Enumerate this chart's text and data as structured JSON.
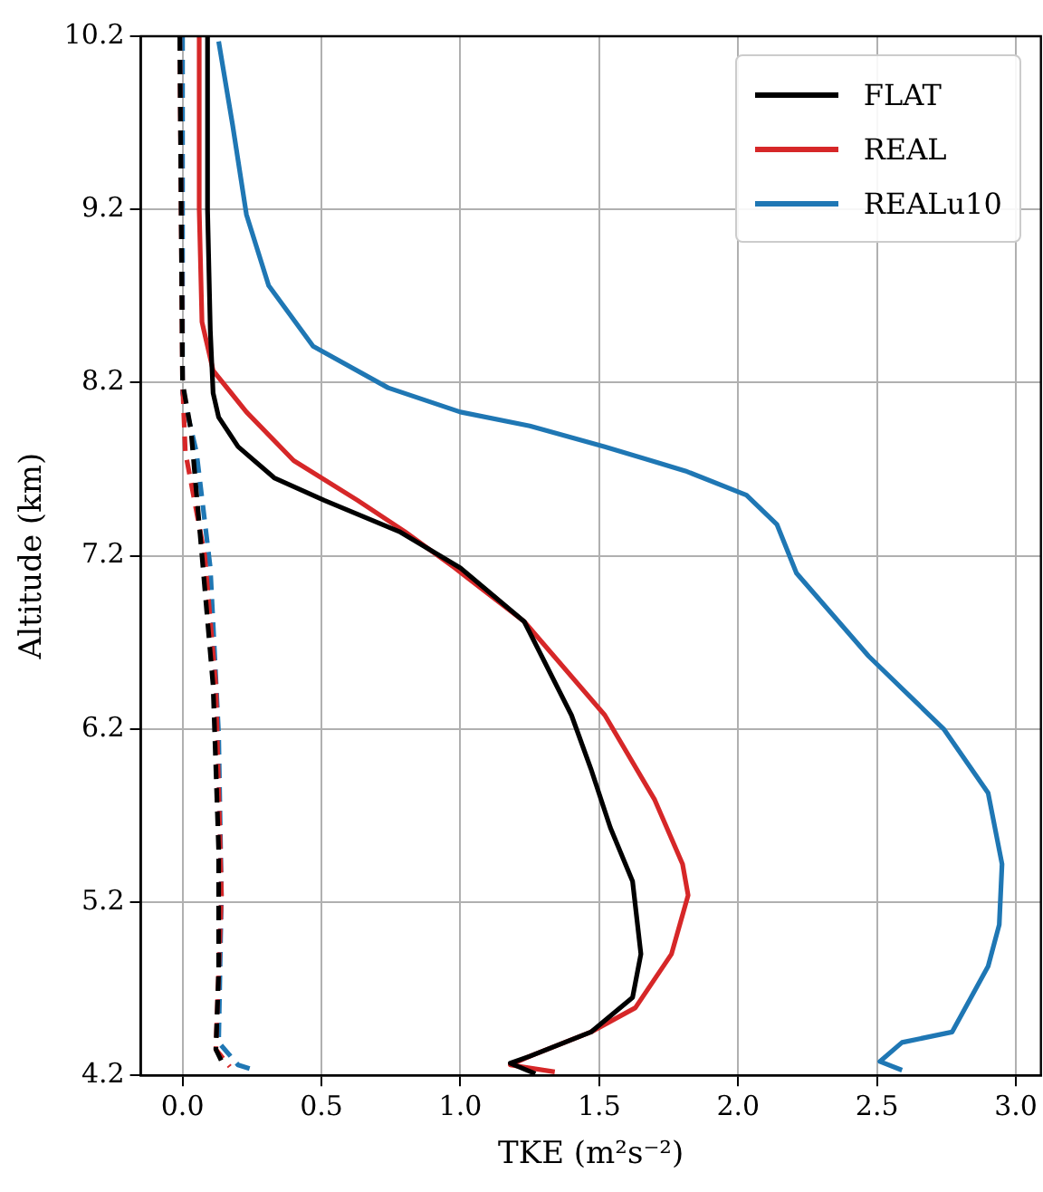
{
  "chart_data": {
    "type": "line",
    "xlabel": "TKE (m²s⁻²)",
    "ylabel": "Altitude (km)",
    "xlim": [
      -0.15,
      3.09
    ],
    "ylim": [
      4.2,
      10.2
    ],
    "xticks": [
      {
        "value": 0,
        "label": "0.0"
      },
      {
        "value": 0.5,
        "label": "0.5"
      },
      {
        "value": 1,
        "label": "1.0"
      },
      {
        "value": 1.5,
        "label": "1.5"
      },
      {
        "value": 2,
        "label": "2.0"
      },
      {
        "value": 2.5,
        "label": "2.5"
      },
      {
        "value": 3,
        "label": "3.0"
      }
    ],
    "yticks": [
      4.2,
      5.2,
      6.2,
      7.2,
      8.2,
      9.2,
      10.2
    ],
    "grid": true,
    "legend": "top right",
    "marker": "none",
    "series": [
      {
        "name": "FLAT",
        "color": "#000000",
        "line_style": "solid",
        "x": [
          0.09,
          0.09,
          0.1,
          0.11,
          0.13,
          0.2,
          0.33,
          0.51,
          0.78,
          1.0,
          1.23,
          1.4,
          1.47,
          1.54,
          1.62,
          1.65,
          1.62,
          1.47,
          1.25,
          1.18,
          1.27
        ],
        "values": [
          10.2,
          9.2,
          8.5,
          8.14,
          8.0,
          7.83,
          7.65,
          7.52,
          7.34,
          7.13,
          6.82,
          6.28,
          5.97,
          5.63,
          5.32,
          4.9,
          4.65,
          4.45,
          4.31,
          4.27,
          4.21
        ]
      },
      {
        "name": "REAL",
        "color": "#d62728",
        "line_style": "solid",
        "x": [
          0.06,
          0.06,
          0.07,
          0.08,
          0.11,
          0.23,
          0.4,
          0.63,
          0.8,
          0.98,
          1.23,
          1.52,
          1.7,
          1.8,
          1.82,
          1.76,
          1.63,
          1.47,
          1.25,
          1.18,
          1.34
        ],
        "values": [
          10.2,
          9.2,
          8.55,
          8.48,
          8.27,
          8.03,
          7.75,
          7.52,
          7.34,
          7.13,
          6.82,
          6.28,
          5.79,
          5.42,
          5.24,
          4.9,
          4.59,
          4.45,
          4.31,
          4.26,
          4.22
        ]
      },
      {
        "name": "REALu10",
        "color": "#1f77b4",
        "line_style": "solid",
        "x": [
          0.13,
          0.18,
          0.23,
          0.31,
          0.47,
          0.74,
          1.0,
          1.25,
          1.52,
          1.81,
          2.03,
          2.14,
          2.21,
          2.47,
          2.74,
          2.9,
          2.95,
          2.94,
          2.9,
          2.77,
          2.59,
          2.51,
          2.59
        ],
        "values": [
          10.17,
          9.69,
          9.17,
          8.76,
          8.41,
          8.17,
          8.03,
          7.95,
          7.83,
          7.69,
          7.55,
          7.38,
          7.1,
          6.62,
          6.2,
          5.83,
          5.42,
          5.07,
          4.83,
          4.45,
          4.39,
          4.28,
          4.23
        ]
      },
      {
        "color": "#000000",
        "line_style": "dashed",
        "x": [
          -0.01,
          0.0,
          0.03,
          0.07,
          0.11,
          0.13,
          0.13,
          0.12,
          0.15
        ],
        "values": [
          10.2,
          8.2,
          7.93,
          7.2,
          6.45,
          5.5,
          4.8,
          4.35,
          4.25
        ]
      },
      {
        "color": "#d62728",
        "line_style": "dashed",
        "x": [
          -0.01,
          0.0,
          0.01,
          0.08,
          0.12,
          0.14,
          0.13,
          0.12,
          0.17
        ],
        "values": [
          10.2,
          8.2,
          7.8,
          7.2,
          6.45,
          5.24,
          4.8,
          4.35,
          4.25
        ]
      },
      {
        "color": "#1f77b4",
        "line_style": "dashed",
        "x": [
          0.0,
          0.0,
          0.0,
          0.05,
          0.1,
          0.13,
          0.14,
          0.13,
          0.2,
          0.26
        ],
        "values": [
          10.2,
          9.2,
          8.14,
          7.8,
          7.13,
          6.17,
          5.24,
          4.39,
          4.26,
          4.23
        ]
      }
    ]
  }
}
